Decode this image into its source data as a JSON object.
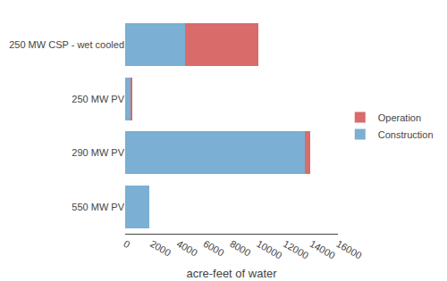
{
  "chart_data": {
    "type": "bar",
    "orientation": "horizontal",
    "stacked": true,
    "categories": [
      "250 MW CSP - wet cooled",
      "250 MW PV",
      "290 MW PV",
      "550 MW PV"
    ],
    "series": [
      {
        "name": "Construction",
        "color": "#7BAFD4",
        "values": [
          4500,
          420,
          13500,
          1800
        ]
      },
      {
        "name": "Operation",
        "color": "#D96B6B",
        "values": [
          5500,
          80,
          400,
          0
        ]
      }
    ],
    "xlabel": "acre-feet of water",
    "xlim": [
      0,
      16000
    ],
    "xticks": [
      0,
      2000,
      4000,
      6000,
      8000,
      10000,
      12000,
      14000,
      16000
    ],
    "grid": false,
    "legend": "right"
  }
}
